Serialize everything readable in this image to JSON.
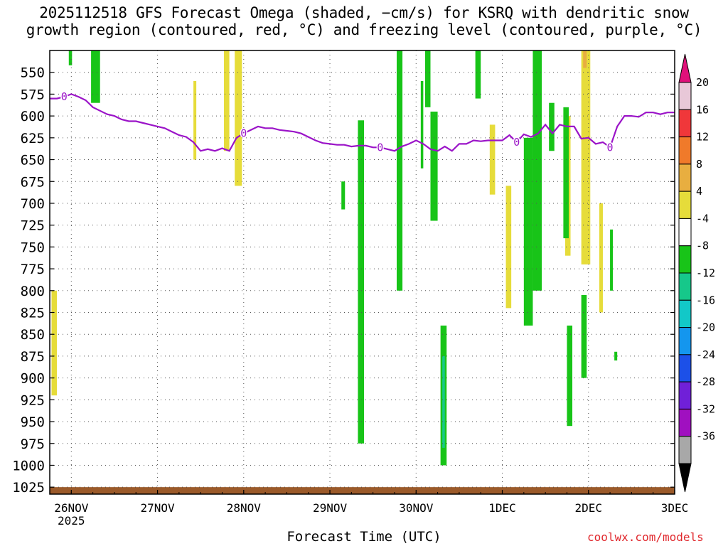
{
  "title_line1": "2025112518 GFS Forecast Omega (shaded, −cm/s) for KSRQ with dendritic snow",
  "title_line2": "growth region (contoured, red, °C) and freezing level (contoured, purple, °C)",
  "xlabel": "Forecast Time (UTC)",
  "credit": "coolwx.com/models",
  "chart_data": {
    "type": "heatmap",
    "title": "2025112518 GFS Forecast Omega (shaded, −cm/s) for KSRQ with dendritic snow growth region (contoured, red, °C) and freezing level (contoured, purple, °C)",
    "xlabel": "Forecast Time (UTC)",
    "ylabel": "",
    "x_range_hours": [
      0,
      174
    ],
    "x_ticks": [
      {
        "label": "26NOV",
        "sub": "2025",
        "hour": 6
      },
      {
        "label": "27NOV",
        "hour": 30
      },
      {
        "label": "28NOV",
        "hour": 54
      },
      {
        "label": "29NOV",
        "hour": 78
      },
      {
        "label": "30NOV",
        "hour": 102
      },
      {
        "label": "1DEC",
        "hour": 126
      },
      {
        "label": "2DEC",
        "hour": 150
      },
      {
        "label": "3DEC",
        "hour": 174
      }
    ],
    "y_ticks": [
      "550",
      "575",
      "600",
      "625",
      "650",
      "675",
      "700",
      "725",
      "750",
      "775",
      "800",
      "825",
      "850",
      "875",
      "900",
      "925",
      "950",
      "975",
      "1000",
      "1025"
    ],
    "y_range_hpa": [
      525,
      1033
    ],
    "grid": true,
    "colorbar": {
      "levels": [
        "20",
        "16",
        "12",
        "8",
        "4",
        "-4",
        "-8",
        "-12",
        "-16",
        "-20",
        "-24",
        "-28",
        "-32",
        "-36"
      ],
      "colors": [
        "#e8c8d8",
        "#f0373a",
        "#f07a2a",
        "#e8ae40",
        "#e6dc3a",
        "#ffffff",
        "#18c418",
        "#16c88a",
        "#12c8c8",
        "#1496ee",
        "#1c50e8",
        "#7020d8",
        "#a010c0",
        "#a8a8a8"
      ],
      "top_arrow": "#e0107a",
      "bottom_arrow": "#000000"
    },
    "freezing_level": {
      "color": "#9b14c8",
      "label": "0",
      "hours": [
        0,
        2,
        4,
        6,
        8,
        10,
        12,
        14,
        16,
        18,
        20,
        22,
        24,
        26,
        28,
        30,
        32,
        34,
        36,
        38,
        40,
        42,
        44,
        46,
        48,
        50,
        52,
        54,
        56,
        58,
        60,
        62,
        64,
        66,
        68,
        70,
        72,
        74,
        76,
        78,
        80,
        82,
        84,
        86,
        88,
        90,
        92,
        94,
        96,
        98,
        100,
        102,
        104,
        106,
        108,
        110,
        112,
        114,
        116,
        118,
        120,
        122,
        124,
        126,
        128,
        130,
        132,
        134,
        136,
        138,
        140,
        142,
        144,
        146,
        148,
        150,
        152,
        154,
        156,
        158,
        160,
        162,
        164,
        166,
        168,
        170,
        172,
        174
      ],
      "pressure": [
        580,
        580,
        578,
        575,
        578,
        582,
        590,
        594,
        598,
        600,
        604,
        606,
        606,
        608,
        610,
        612,
        614,
        618,
        622,
        624,
        630,
        640,
        638,
        640,
        637,
        640,
        625,
        620,
        616,
        612,
        614,
        614,
        616,
        617,
        618,
        620,
        624,
        628,
        631,
        632,
        633,
        633,
        635,
        634,
        634,
        636,
        636,
        638,
        640,
        635,
        632,
        628,
        632,
        638,
        640,
        635,
        640,
        632,
        632,
        628,
        629,
        628,
        628,
        628,
        622,
        630,
        621,
        624,
        620,
        610,
        620,
        610,
        612,
        612,
        626,
        625,
        632,
        630,
        636,
        612,
        600,
        600,
        601,
        596,
        596,
        598,
        596,
        596
      ]
    },
    "omega_regions": [
      {
        "type": "upward",
        "value": -6,
        "hour_start": 5.3,
        "hour_end": 6.2,
        "p_top": 525,
        "p_bottom": 542
      },
      {
        "type": "upward",
        "value": -6,
        "hour_start": 11.5,
        "hour_end": 14.0,
        "p_top": 525,
        "p_bottom": 585
      },
      {
        "type": "upward",
        "value": -6,
        "hour_start": 81.2,
        "hour_end": 82.2,
        "p_top": 675,
        "p_bottom": 707
      },
      {
        "type": "upward",
        "value": -6,
        "hour_start": 85.8,
        "hour_end": 87.5,
        "p_top": 605,
        "p_bottom": 975
      },
      {
        "type": "upward",
        "value": -6,
        "hour_start": 96.6,
        "hour_end": 98.2,
        "p_top": 525,
        "p_bottom": 800
      },
      {
        "type": "upward",
        "value": -6,
        "hour_start": 103.3,
        "hour_end": 104.0,
        "p_top": 560,
        "p_bottom": 660
      },
      {
        "type": "upward",
        "value": -6,
        "hour_start": 104.5,
        "hour_end": 106.0,
        "p_top": 525,
        "p_bottom": 590
      },
      {
        "type": "upward",
        "value": -6,
        "hour_start": 106.0,
        "hour_end": 108.0,
        "p_top": 595,
        "p_bottom": 720
      },
      {
        "type": "upward",
        "value": -6,
        "hour_start": 108.8,
        "hour_end": 110.5,
        "p_top": 840,
        "p_bottom": 1000
      },
      {
        "type": "upward",
        "value": -10,
        "hour_start": 109.3,
        "hour_end": 110.0,
        "p_top": 875,
        "p_bottom": 980
      },
      {
        "type": "upward",
        "value": -6,
        "hour_start": 118.5,
        "hour_end": 120.0,
        "p_top": 525,
        "p_bottom": 580
      },
      {
        "type": "upward",
        "value": -6,
        "hour_start": 132.0,
        "hour_end": 134.5,
        "p_top": 625,
        "p_bottom": 840
      },
      {
        "type": "upward",
        "value": -6,
        "hour_start": 134.5,
        "hour_end": 137.0,
        "p_top": 525,
        "p_bottom": 800
      },
      {
        "type": "upward",
        "value": -6,
        "hour_start": 139.0,
        "hour_end": 140.5,
        "p_top": 585,
        "p_bottom": 640
      },
      {
        "type": "upward",
        "value": -6,
        "hour_start": 143.0,
        "hour_end": 144.5,
        "p_top": 590,
        "p_bottom": 740
      },
      {
        "type": "upward",
        "value": -6,
        "hour_start": 144.0,
        "hour_end": 145.5,
        "p_top": 840,
        "p_bottom": 955
      },
      {
        "type": "upward",
        "value": -6,
        "hour_start": 148.0,
        "hour_end": 149.5,
        "p_top": 805,
        "p_bottom": 900
      },
      {
        "type": "upward",
        "value": -6,
        "hour_start": 156.0,
        "hour_end": 156.8,
        "p_top": 730,
        "p_bottom": 800
      },
      {
        "type": "upward",
        "value": -6,
        "hour_start": 157.2,
        "hour_end": 158.0,
        "p_top": 870,
        "p_bottom": 880
      }
    ],
    "downward_regions": [
      {
        "type": "downward",
        "value": 6,
        "hour_start": 0.5,
        "hour_end": 2.0,
        "p_top": 800,
        "p_bottom": 920
      },
      {
        "type": "downward",
        "value": 6,
        "hour_start": 40.0,
        "hour_end": 40.8,
        "p_top": 560,
        "p_bottom": 650
      },
      {
        "type": "downward",
        "value": 6,
        "hour_start": 48.5,
        "hour_end": 50.0,
        "p_top": 525,
        "p_bottom": 640
      },
      {
        "type": "downward",
        "value": 6,
        "hour_start": 51.5,
        "hour_end": 53.5,
        "p_top": 525,
        "p_bottom": 680
      },
      {
        "type": "downward",
        "value": 6,
        "hour_start": 122.5,
        "hour_end": 124.0,
        "p_top": 610,
        "p_bottom": 690
      },
      {
        "type": "downward",
        "value": 6,
        "hour_start": 127.0,
        "hour_end": 128.5,
        "p_top": 680,
        "p_bottom": 820
      },
      {
        "type": "downward",
        "value": 6,
        "hour_start": 135.0,
        "hour_end": 136.0,
        "p_top": 620,
        "p_bottom": 670
      },
      {
        "type": "downward",
        "value": 6,
        "hour_start": 143.5,
        "hour_end": 145.0,
        "p_top": 600,
        "p_bottom": 760
      },
      {
        "type": "downward",
        "value": 6,
        "hour_start": 148.0,
        "hour_end": 150.5,
        "p_top": 525,
        "p_bottom": 770
      },
      {
        "type": "downward",
        "value": 10,
        "hour_start": 148.5,
        "hour_end": 149.5,
        "p_top": 525,
        "p_bottom": 545
      },
      {
        "type": "downward",
        "value": 6,
        "hour_start": 153.0,
        "hour_end": 154.0,
        "p_top": 700,
        "p_bottom": 825
      }
    ],
    "surface_band": {
      "color": "#9b5a2a",
      "p_top": 1025,
      "p_bottom": 1033
    }
  }
}
